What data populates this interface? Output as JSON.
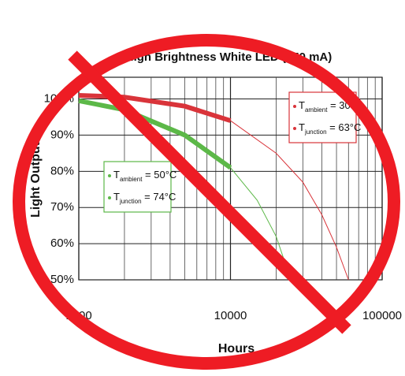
{
  "chart_data": {
    "type": "line",
    "title": "High Brightness White LED (350 mA)",
    "x_label": "Hours",
    "y_label": "Light Output",
    "xscale": "log",
    "xlim": [
      1000,
      100000
    ],
    "xticks": [
      1000,
      10000,
      100000
    ],
    "ylim": [
      50,
      106
    ],
    "yticks": [
      {
        "value": 50,
        "label": "50%"
      },
      {
        "value": 60,
        "label": "60%"
      },
      {
        "value": 70,
        "label": "70%"
      },
      {
        "value": 80,
        "label": "80%"
      },
      {
        "value": 90,
        "label": "90%"
      },
      {
        "value": 100,
        "label": "100%"
      }
    ],
    "grid": true,
    "series": [
      {
        "color": "#d9343a",
        "legend": [
          {
            "symbol": "T",
            "subscript": "ambient",
            "text": " = 30°C"
          },
          {
            "symbol": "T",
            "subscript": "junction",
            "text": " = 63°C"
          }
        ],
        "segments": [
          {
            "width": 6,
            "x": [
              1000,
              2000,
              5000,
              10000
            ],
            "values": [
              101,
              100.5,
              98,
              94
            ]
          },
          {
            "width": 1,
            "x": [
              10000,
              20000,
              30000,
              40000,
              50000,
              60000
            ],
            "values": [
              94,
              85,
              77,
              68,
              59,
              50
            ]
          }
        ]
      },
      {
        "color": "#5cb848",
        "legend": [
          {
            "symbol": "T",
            "subscript": "ambient",
            "text": " = 50°C"
          },
          {
            "symbol": "T",
            "subscript": "junction",
            "text": " = 74°C"
          }
        ],
        "segments": [
          {
            "width": 6,
            "x": [
              1000,
              2000,
              5000,
              10000
            ],
            "values": [
              99.5,
              97,
              90,
              81
            ]
          },
          {
            "width": 1,
            "x": [
              10000,
              15000,
              20000,
              25000
            ],
            "values": [
              81,
              72,
              62,
              50
            ]
          }
        ]
      }
    ]
  }
}
